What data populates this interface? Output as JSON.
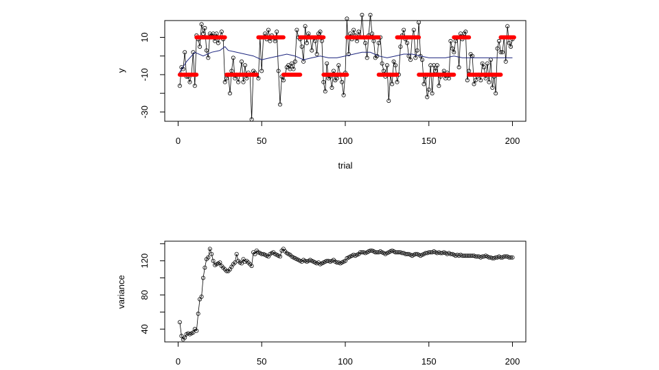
{
  "chart_data": [
    {
      "type": "line",
      "xlabel": "trial",
      "ylabel": "y",
      "xlim": [
        0,
        200
      ],
      "ylim": [
        -35,
        19
      ],
      "xticks": [
        "0",
        "50",
        "100",
        "150",
        "200"
      ],
      "yticks": [
        "-30",
        "-10",
        "10"
      ],
      "grid": false,
      "legend": "none",
      "series": [
        {
          "style": "points-with-line",
          "color": "#000000",
          "x": [
            1,
            2,
            3,
            4,
            5,
            6,
            7,
            8,
            9,
            10,
            11,
            12,
            13,
            14,
            15,
            16,
            17,
            18,
            19,
            20,
            21,
            22,
            23,
            24,
            25,
            26,
            27,
            28,
            29,
            30,
            31,
            32,
            33,
            34,
            35,
            36,
            37,
            38,
            39,
            40,
            41,
            42,
            43,
            44,
            45,
            46,
            47,
            48,
            49,
            50,
            51,
            52,
            53,
            54,
            55,
            56,
            57,
            58,
            59,
            60,
            61,
            62,
            63,
            64,
            65,
            66,
            67,
            68,
            69,
            70,
            71,
            72,
            73,
            74,
            75,
            76,
            77,
            78,
            79,
            80,
            81,
            82,
            83,
            84,
            85,
            86,
            87,
            88,
            89,
            90,
            91,
            92,
            93,
            94,
            95,
            96,
            97,
            98,
            99,
            100,
            101,
            102,
            103,
            104,
            105,
            106,
            107,
            108,
            109,
            110,
            111,
            112,
            113,
            114,
            115,
            116,
            117,
            118,
            119,
            120,
            121,
            122,
            123,
            124,
            125,
            126,
            127,
            128,
            129,
            130,
            131,
            132,
            133,
            134,
            135,
            136,
            137,
            138,
            139,
            140,
            141,
            142,
            143,
            144,
            145,
            146,
            147,
            148,
            149,
            150,
            151,
            152,
            153,
            154,
            155,
            156,
            157,
            158,
            159,
            160,
            161,
            162,
            163,
            164,
            165,
            166,
            167,
            168,
            169,
            170,
            171,
            172,
            173,
            174,
            175,
            176,
            177,
            178,
            179,
            180,
            181,
            182,
            183,
            184,
            185,
            186,
            187,
            188,
            189,
            190,
            191,
            192,
            193,
            194,
            195,
            196,
            197,
            198,
            199,
            200
          ],
          "y": [
            -16,
            -6,
            -7,
            2,
            -11,
            -11,
            -14,
            -10,
            2,
            -16,
            11,
            9,
            5,
            17,
            12,
            15,
            3,
            -1,
            12,
            11,
            12,
            8,
            12,
            7,
            10,
            13,
            9,
            -14,
            -12,
            -10,
            -20,
            -8,
            -1,
            -12,
            -10,
            -14,
            -10,
            -3,
            -14,
            -5,
            -12,
            -9,
            -10,
            -34,
            -8,
            -9,
            -10,
            -12,
            10,
            -8,
            10,
            12,
            9,
            14,
            8,
            11,
            10,
            8,
            13,
            -8,
            -26,
            -11,
            -13,
            -10,
            -6,
            -5,
            -7,
            -4,
            -7,
            -3,
            14,
            10,
            9,
            5,
            -3,
            16,
            7,
            12,
            10,
            3,
            10,
            8,
            1,
            12,
            13,
            8,
            -14,
            -19,
            -4,
            -12,
            -11,
            -17,
            -8,
            -13,
            -12,
            -5,
            -10,
            -14,
            -21,
            -9,
            20,
            1,
            12,
            9,
            14,
            11,
            8,
            13,
            10,
            22,
            10,
            7,
            -1,
            11,
            22,
            12,
            8,
            -1,
            0,
            7,
            10,
            -4,
            -8,
            -11,
            -5,
            -24,
            -10,
            -15,
            -3,
            -5,
            -14,
            -10,
            5,
            11,
            14,
            9,
            7,
            0,
            -2,
            10,
            14,
            -1,
            3,
            18,
            0,
            -2,
            -15,
            -11,
            -22,
            -18,
            -5,
            -20,
            -5,
            -8,
            -5,
            -16,
            -11,
            -10,
            -8,
            -12,
            -9,
            -12,
            8,
            4,
            2,
            8,
            10,
            -6,
            12,
            9,
            12,
            13,
            -13,
            -8,
            1,
            0,
            -15,
            -13,
            -11,
            -10,
            -13,
            -4,
            -6,
            -12,
            -4,
            -14,
            -2,
            -17,
            -11,
            -20,
            4,
            8,
            2,
            2,
            10,
            -3,
            16,
            7,
            5,
            9
          ]
        },
        {
          "style": "line",
          "color": "#1a237e",
          "x": [
            0,
            5,
            10,
            15,
            20,
            25,
            28,
            30,
            35,
            40,
            45,
            50,
            55,
            60,
            65,
            70,
            75,
            80,
            85,
            90,
            95,
            100,
            105,
            110,
            115,
            120,
            125,
            130,
            135,
            140,
            145,
            150,
            155,
            160,
            165,
            170,
            175,
            180,
            185,
            190,
            195,
            200
          ],
          "y": [
            -10,
            -3,
            2,
            0,
            2,
            3,
            5,
            3,
            2,
            1,
            0,
            -2,
            -1,
            0,
            1,
            0,
            -2,
            -1,
            0,
            -1,
            -1,
            0,
            1,
            2,
            2,
            0,
            -1,
            0,
            1,
            1,
            0,
            -1,
            -1,
            -1,
            0,
            -1,
            -1,
            -1,
            -1,
            -1,
            -1,
            -1
          ]
        },
        {
          "style": "thick-segments",
          "color": "#ff0000",
          "segments": [
            {
              "x": [
                1,
                11
              ],
              "y": -10
            },
            {
              "x": [
                11,
                28
              ],
              "y": 10
            },
            {
              "x": [
                29,
                47
              ],
              "y": -10
            },
            {
              "x": [
                48,
                63
              ],
              "y": 10
            },
            {
              "x": [
                63,
                73
              ],
              "y": -10
            },
            {
              "x": [
                73,
                87
              ],
              "y": 10
            },
            {
              "x": [
                87,
                101
              ],
              "y": -10
            },
            {
              "x": [
                101,
                120
              ],
              "y": 10
            },
            {
              "x": [
                120,
                131
              ],
              "y": -10
            },
            {
              "x": [
                131,
                144
              ],
              "y": 10
            },
            {
              "x": [
                144,
                165
              ],
              "y": -10
            },
            {
              "x": [
                165,
                174
              ],
              "y": 10
            },
            {
              "x": [
                174,
                193
              ],
              "y": -10
            },
            {
              "x": [
                193,
                201
              ],
              "y": 10
            }
          ]
        }
      ]
    },
    {
      "type": "line",
      "xlabel": "",
      "ylabel": "variance",
      "xlim": [
        0,
        200
      ],
      "ylim": [
        25,
        143
      ],
      "xticks": [
        "0",
        "50",
        "100",
        "150",
        "200"
      ],
      "yticks": [
        "40",
        "80",
        "120"
      ],
      "grid": false,
      "legend": "none",
      "series": [
        {
          "style": "points-with-line",
          "color": "#000000",
          "x": [
            1,
            2,
            3,
            4,
            5,
            6,
            7,
            8,
            9,
            10,
            11,
            12,
            13,
            14,
            15,
            16,
            17,
            18,
            19,
            20,
            21,
            22,
            23,
            24,
            25,
            26,
            27,
            28,
            29,
            30,
            31,
            32,
            33,
            34,
            35,
            36,
            37,
            38,
            39,
            40,
            41,
            42,
            43,
            44,
            45,
            46,
            47,
            48,
            49,
            50,
            51,
            52,
            53,
            54,
            55,
            56,
            57,
            58,
            59,
            60,
            61,
            62,
            63,
            64,
            65,
            66,
            67,
            68,
            69,
            70,
            71,
            72,
            73,
            74,
            75,
            76,
            77,
            78,
            79,
            80,
            81,
            82,
            83,
            84,
            85,
            86,
            87,
            88,
            89,
            90,
            91,
            92,
            93,
            94,
            95,
            96,
            97,
            98,
            99,
            100,
            101,
            102,
            103,
            104,
            105,
            106,
            107,
            108,
            109,
            110,
            111,
            112,
            113,
            114,
            115,
            116,
            117,
            118,
            119,
            120,
            121,
            122,
            123,
            124,
            125,
            126,
            127,
            128,
            129,
            130,
            131,
            132,
            133,
            134,
            135,
            136,
            137,
            138,
            139,
            140,
            141,
            142,
            143,
            144,
            145,
            146,
            147,
            148,
            149,
            150,
            151,
            152,
            153,
            154,
            155,
            156,
            157,
            158,
            159,
            160,
            161,
            162,
            163,
            164,
            165,
            166,
            167,
            168,
            169,
            170,
            171,
            172,
            173,
            174,
            175,
            176,
            177,
            178,
            179,
            180,
            181,
            182,
            183,
            184,
            185,
            186,
            187,
            188,
            189,
            190,
            191,
            192,
            193,
            194,
            195,
            196,
            197,
            198,
            199,
            200
          ],
          "y": [
            48,
            32,
            28,
            30,
            34,
            35,
            34,
            35,
            36,
            40,
            38,
            58,
            75,
            78,
            100,
            112,
            122,
            124,
            134,
            128,
            120,
            115,
            116,
            117,
            118,
            114,
            112,
            110,
            108,
            108,
            110,
            113,
            116,
            118,
            128,
            120,
            118,
            117,
            122,
            119,
            120,
            118,
            116,
            114,
            130,
            128,
            132,
            130,
            129,
            128,
            128,
            127,
            126,
            125,
            128,
            129,
            130,
            128,
            127,
            126,
            125,
            132,
            134,
            131,
            129,
            128,
            127,
            125,
            124,
            123,
            122,
            121,
            120,
            119,
            121,
            120,
            119,
            120,
            121,
            120,
            119,
            118,
            117,
            118,
            116,
            117,
            118,
            119,
            120,
            120,
            119,
            120,
            121,
            119,
            118,
            118,
            117,
            118,
            119,
            120,
            123,
            124,
            125,
            126,
            127,
            126,
            127,
            128,
            130,
            130,
            130,
            129,
            130,
            131,
            132,
            132,
            131,
            130,
            130,
            130,
            131,
            130,
            129,
            128,
            129,
            130,
            131,
            132,
            131,
            130,
            130,
            130,
            130,
            129,
            129,
            128,
            128,
            128,
            127,
            126,
            127,
            128,
            128,
            127,
            126,
            127,
            128,
            129,
            129,
            130,
            130,
            130,
            131,
            130,
            129,
            130,
            129,
            129,
            130,
            129,
            128,
            129,
            128,
            128,
            127,
            126,
            127,
            126,
            127,
            126,
            126,
            126,
            126,
            126,
            126,
            126,
            126,
            125,
            125,
            125,
            124,
            125,
            125,
            126,
            125,
            124,
            124,
            123,
            123,
            124,
            124,
            125,
            124,
            124,
            125,
            125,
            125,
            124,
            124,
            124
          ]
        }
      ]
    }
  ]
}
